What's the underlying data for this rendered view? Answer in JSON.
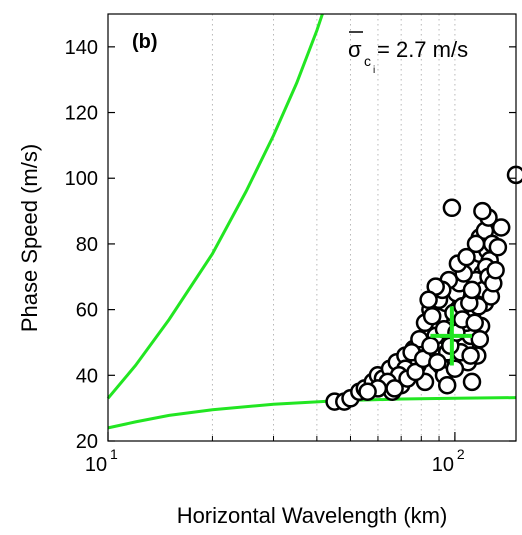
{
  "chart_data": {
    "type": "scatter",
    "panel_label": "(b)",
    "annotation": {
      "sigma": "σ",
      "subscript": "c",
      "subsubscript": "i",
      "text": " = 2.7 m/s"
    },
    "xlabel": "Horizontal Wavelength (km)",
    "ylabel": "Phase Speed (m/s)",
    "x_scale": "log",
    "xlim": [
      10,
      150
    ],
    "ylim": [
      20,
      150
    ],
    "x_ticks": [
      {
        "value": 10,
        "base": "10",
        "exp": "1"
      },
      {
        "value": 100,
        "base": "10",
        "exp": "2"
      }
    ],
    "y_ticks": [
      {
        "value": 20,
        "label": "20"
      },
      {
        "value": 40,
        "label": "40"
      },
      {
        "value": 60,
        "label": "60"
      },
      {
        "value": 80,
        "label": "80"
      },
      {
        "value": 100,
        "label": "100"
      },
      {
        "value": 120,
        "label": "120"
      },
      {
        "value": 140,
        "label": "140"
      }
    ],
    "grid": "vertical dotted",
    "colors": {
      "curves": "#22e622",
      "markers": "#000000",
      "cross": "#22e622"
    },
    "upper_curve": [
      [
        10,
        33
      ],
      [
        12,
        43
      ],
      [
        15,
        57
      ],
      [
        20,
        77
      ],
      [
        25,
        96
      ],
      [
        30,
        113
      ],
      [
        35,
        129
      ],
      [
        40,
        145
      ],
      [
        41.5,
        150
      ]
    ],
    "lower_curve": [
      [
        10,
        24
      ],
      [
        12,
        25.8
      ],
      [
        15,
        27.8
      ],
      [
        20,
        29.5
      ],
      [
        30,
        31.2
      ],
      [
        45,
        32.2
      ],
      [
        70,
        32.8
      ],
      [
        100,
        33
      ],
      [
        150,
        33.2
      ]
    ],
    "mean_point": {
      "x": 98,
      "y": 52,
      "x_err_low": 85,
      "x_err_high": 112,
      "y_err_low": 43,
      "y_err_high": 61
    },
    "points": [
      [
        45,
        32
      ],
      [
        48,
        32
      ],
      [
        50,
        33
      ],
      [
        53,
        35
      ],
      [
        55,
        36
      ],
      [
        58,
        38
      ],
      [
        60,
        40
      ],
      [
        62,
        39
      ],
      [
        65,
        42
      ],
      [
        66,
        35
      ],
      [
        68,
        44
      ],
      [
        70,
        37
      ],
      [
        72,
        46
      ],
      [
        74,
        41
      ],
      [
        76,
        48
      ],
      [
        78,
        43
      ],
      [
        80,
        50
      ],
      [
        82,
        38
      ],
      [
        84,
        52
      ],
      [
        86,
        46
      ],
      [
        88,
        55
      ],
      [
        90,
        48
      ],
      [
        92,
        58
      ],
      [
        94,
        62
      ],
      [
        96,
        51
      ],
      [
        98,
        45
      ],
      [
        100,
        56
      ],
      [
        102,
        60
      ],
      [
        104,
        64
      ],
      [
        106,
        54
      ],
      [
        108,
        67
      ],
      [
        110,
        70
      ],
      [
        112,
        58
      ],
      [
        114,
        73
      ],
      [
        116,
        66
      ],
      [
        118,
        77
      ],
      [
        120,
        71
      ],
      [
        122,
        62
      ],
      [
        124,
        78
      ],
      [
        126,
        75
      ],
      [
        82,
        56
      ],
      [
        85,
        60
      ],
      [
        88,
        52
      ],
      [
        91,
        43
      ],
      [
        93,
        40
      ],
      [
        95,
        47
      ],
      [
        97,
        53
      ],
      [
        99,
        59
      ],
      [
        101,
        65
      ],
      [
        103,
        68
      ],
      [
        105,
        61
      ],
      [
        107,
        49
      ],
      [
        109,
        44
      ],
      [
        111,
        52
      ],
      [
        113,
        63
      ],
      [
        115,
        69
      ],
      [
        117,
        61
      ],
      [
        119,
        55
      ],
      [
        121,
        66
      ],
      [
        123,
        73
      ],
      [
        125,
        70
      ],
      [
        127,
        64
      ],
      [
        129,
        68
      ],
      [
        131,
        72
      ],
      [
        118,
        82
      ],
      [
        122,
        84
      ],
      [
        125,
        88
      ],
      [
        120,
        90
      ],
      [
        128,
        80
      ],
      [
        133,
        79
      ],
      [
        98,
        91
      ],
      [
        136,
        85
      ],
      [
        150,
        101
      ],
      [
        112,
        38
      ],
      [
        116,
        46
      ],
      [
        95,
        37
      ],
      [
        100,
        42
      ],
      [
        104,
        47
      ],
      [
        108,
        56
      ],
      [
        90,
        63
      ],
      [
        86,
        58
      ],
      [
        79,
        51
      ],
      [
        75,
        47
      ],
      [
        72,
        42
      ],
      [
        69,
        40
      ],
      [
        64,
        38
      ],
      [
        60,
        36
      ],
      [
        56,
        35
      ],
      [
        67,
        36
      ],
      [
        73,
        39
      ],
      [
        77,
        41
      ],
      [
        81,
        45
      ],
      [
        85,
        49
      ],
      [
        89,
        44
      ],
      [
        93,
        54
      ],
      [
        97,
        49
      ],
      [
        101,
        53
      ],
      [
        105,
        57
      ],
      [
        110,
        62
      ],
      [
        114,
        56
      ],
      [
        118,
        51
      ],
      [
        112,
        66
      ],
      [
        106,
        71
      ],
      [
        102,
        74
      ],
      [
        108,
        76
      ],
      [
        115,
        80
      ],
      [
        111,
        46
      ],
      [
        96,
        69
      ],
      [
        92,
        66
      ],
      [
        88,
        67
      ],
      [
        84,
        63
      ]
    ]
  }
}
